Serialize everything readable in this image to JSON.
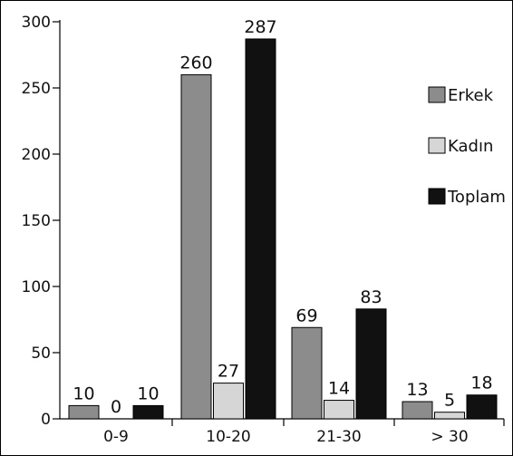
{
  "chart_data": {
    "type": "bar",
    "categories": [
      "0-9",
      "10-20",
      "21-30",
      "> 30"
    ],
    "series": [
      {
        "name": "Erkek",
        "values": [
          10,
          260,
          69,
          13
        ],
        "color": "#8c8c8c"
      },
      {
        "name": "Kadın",
        "values": [
          0,
          27,
          14,
          5
        ],
        "color": "#d6d6d6"
      },
      {
        "name": "Toplam",
        "values": [
          10,
          287,
          83,
          18
        ],
        "color": "#111111"
      }
    ],
    "yticks": [
      0,
      50,
      100,
      150,
      200,
      250,
      300
    ],
    "ylim": [
      0,
      300
    ],
    "title": "",
    "xlabel": "",
    "ylabel": "",
    "grid": false,
    "legend_position": "right",
    "data_labels": true
  }
}
